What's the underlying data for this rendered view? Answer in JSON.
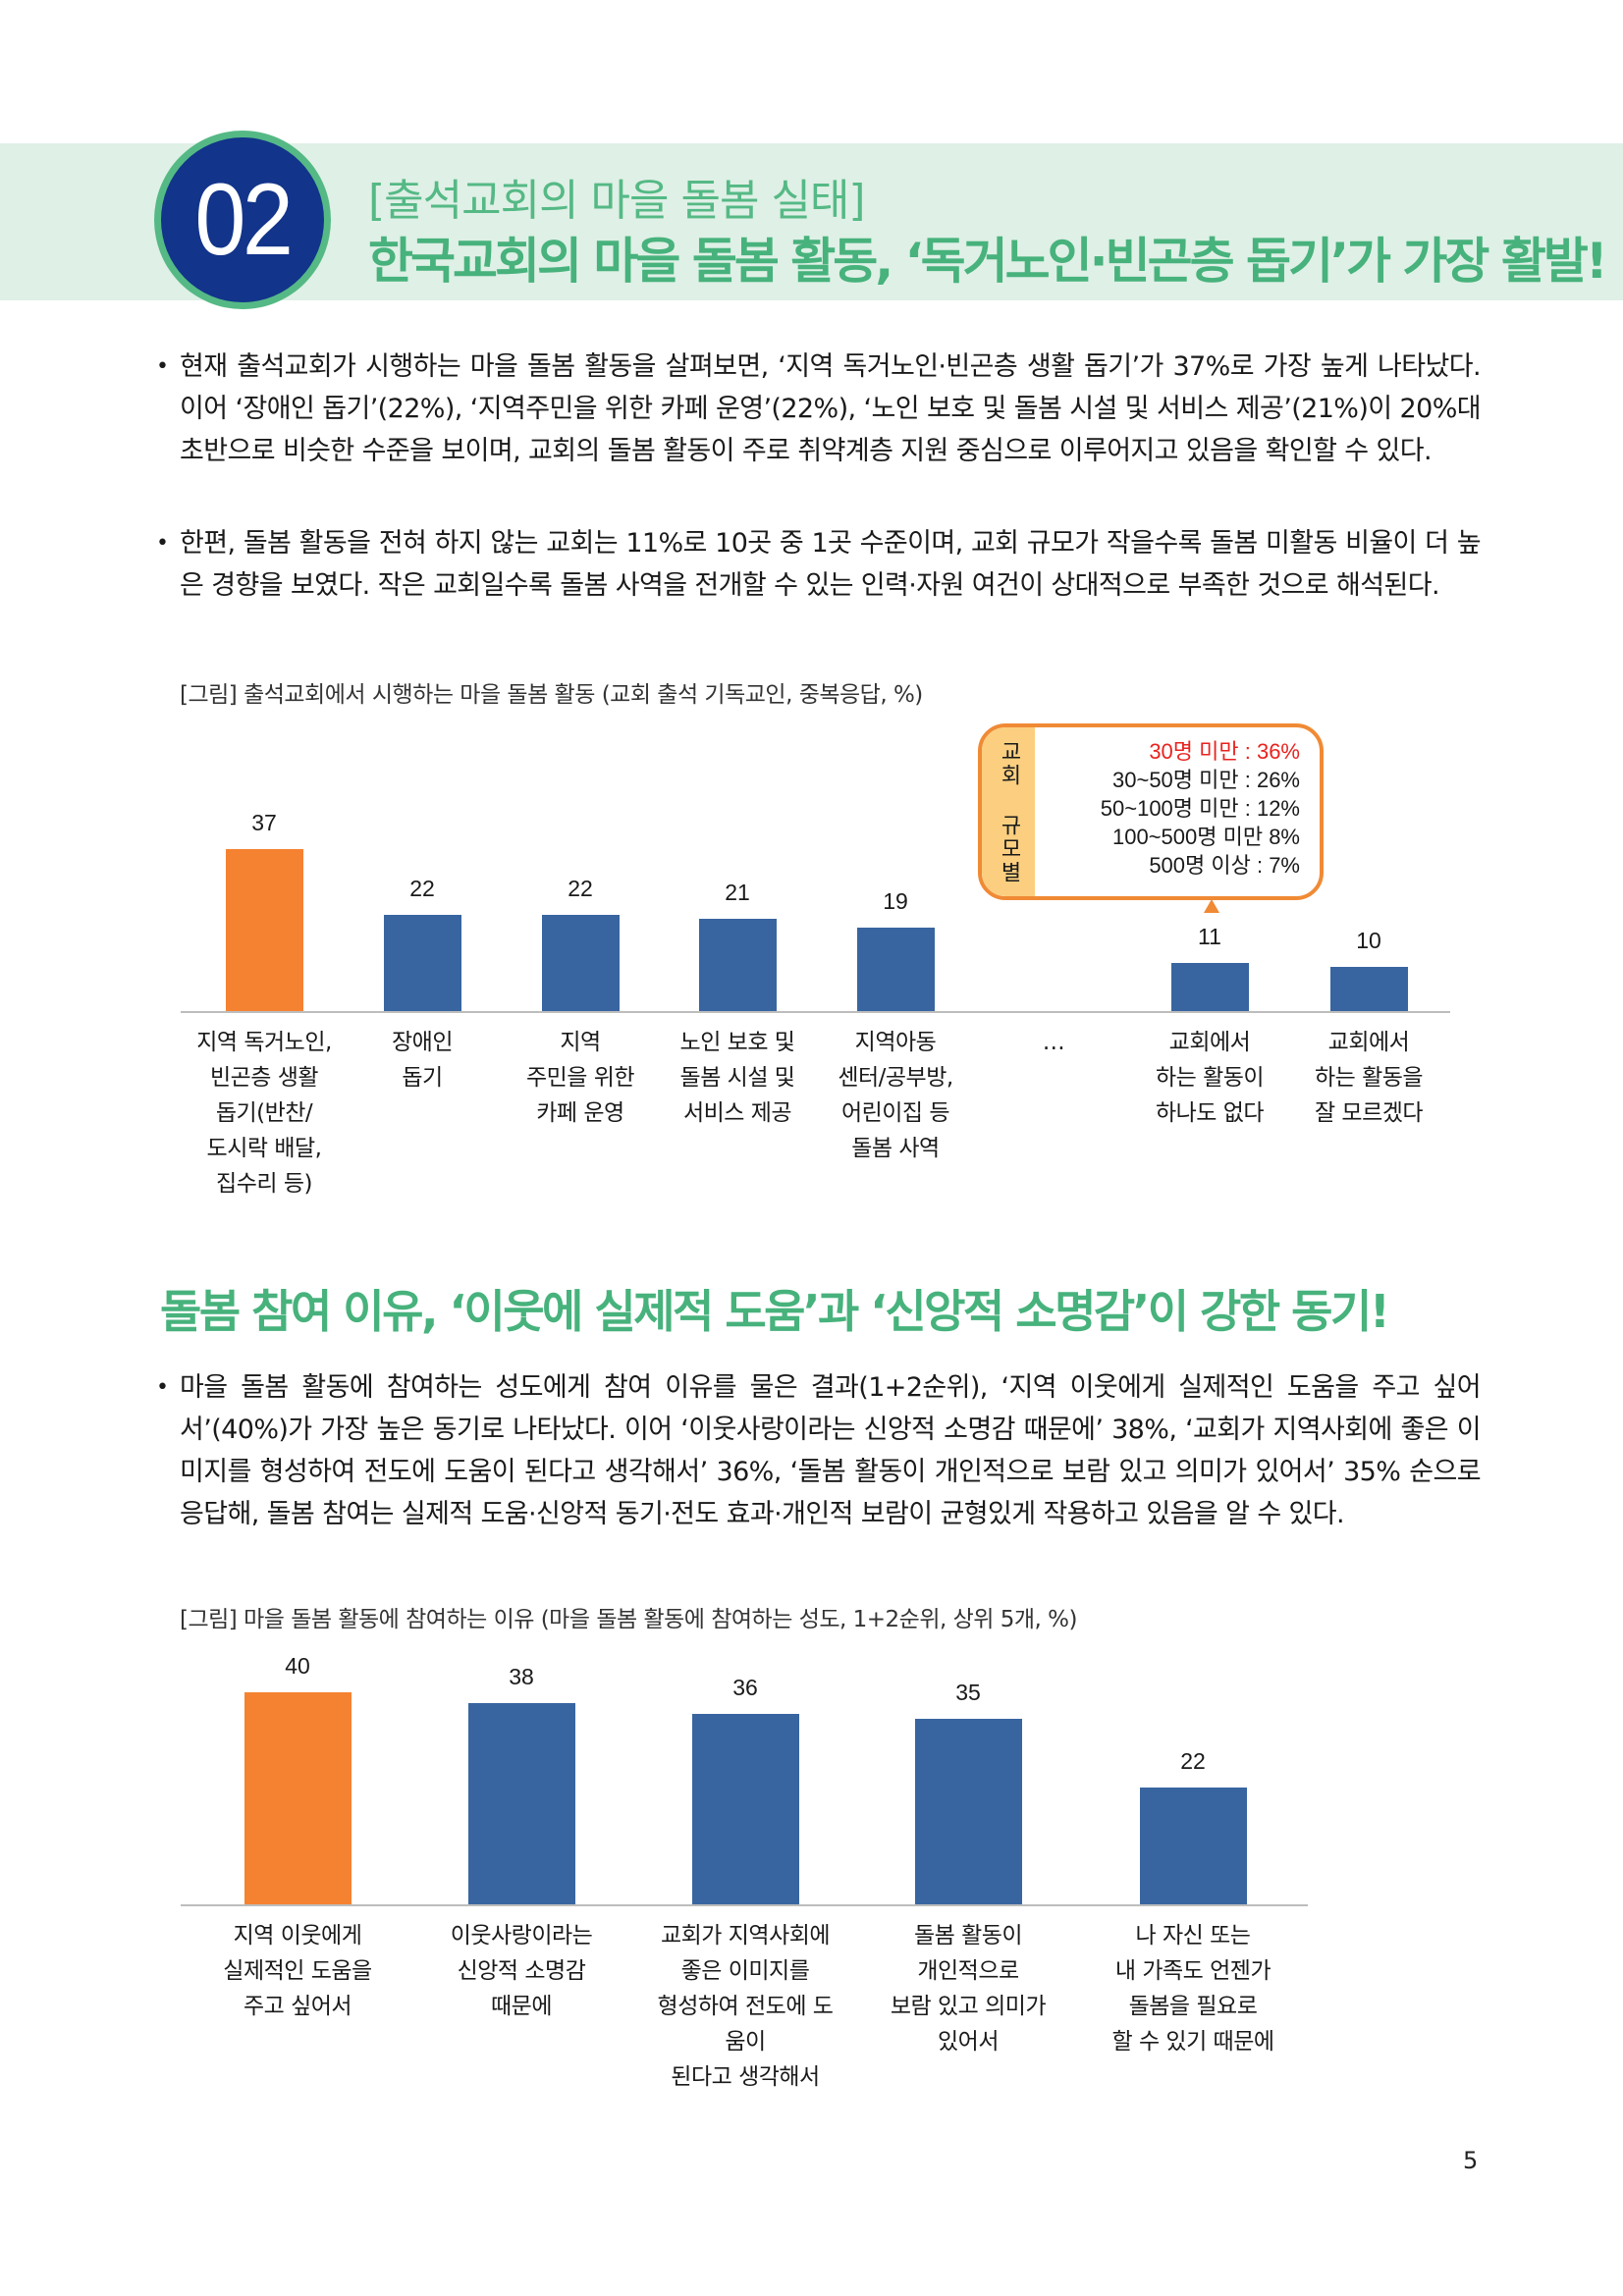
{
  "header": {
    "number": "02",
    "subtitle": "[출석교회의 마을 돌봄 실태]",
    "title": "한국교회의 마을 돌봄 활동, ‘독거노인·빈곤층 돕기’가 가장 활발!"
  },
  "section1": {
    "paragraphs": [
      "현재 출석교회가 시행하는 마을 돌봄 활동을 살펴보면, ‘지역 독거노인·빈곤층 생활 돕기’가 37%로 가장 높게 나타났다. 이어 ‘장애인 돕기’(22%), ‘지역주민을 위한 카페 운영’(22%), ‘노인 보호 및 돌봄 시설 및 서비스 제공’(21%)이 20%대 초반으로 비슷한 수준을 보이며, 교회의 돌봄 활동이 주로 취약계층 지원 중심으로 이루어지고 있음을 확인할 수 있다.",
      "한편, 돌봄 활동을 전혀 하지 않는 교회는 11%로 10곳 중 1곳 수준이며, 교회 규모가 작을수록 돌봄 미활동 비율이 더 높은 경향을 보였다. 작은 교회일수록 돌봄 사역을 전개할 수 있는 인력·자원 여건이 상대적으로 부족한 것으로 해석된다."
    ],
    "figure_caption": "[그림] 출석교회에서 시행하는 마을 돌봄 활동 (교회 출석 기독교인, 중복응답, %)",
    "callout": {
      "tag": "교회 규모별",
      "lines": [
        {
          "text": "30명 미만 : 36%",
          "highlight": true
        },
        {
          "text": "30~50명 미만 : 26%",
          "highlight": false
        },
        {
          "text": "50~100명 미만 : 12%",
          "highlight": false
        },
        {
          "text": "100~500명 미만 8%",
          "highlight": false
        },
        {
          "text": "500명 이상 : 7%",
          "highlight": false
        }
      ],
      "highlight_color": "#e8231f",
      "border_color": "#f08a35"
    }
  },
  "section2": {
    "heading": "돌봄 참여 이유, ‘이웃에 실제적 도움’과 ‘신앙적 소명감’이 강한 동기!",
    "paragraphs": [
      "마을 돌봄 활동에 참여하는 성도에게 참여 이유를 물은 결과(1+2순위), ‘지역 이웃에게 실제적인 도움을 주고 싶어서’(40%)가 가장 높은 동기로 나타났다. 이어 ‘이웃사랑이라는 신앙적 소명감 때문에’ 38%, ‘교회가 지역사회에 좋은 이미지를 형성하여 전도에 도움이 된다고 생각해서’ 36%, ‘돌봄 활동이 개인적으로 보람 있고 의미가 있어서’ 35% 순으로 응답해, 돌봄 참여는 실제적 도움·신앙적 동기·전도 효과·개인적 보람이 균형있게 작용하고 있음을 알 수 있다."
    ],
    "figure_caption": "[그림] 마을 돌봄 활동에 참여하는 이유 (마을 돌봄 활동에 참여하는 성도, 1+2순위, 상위 5개, %)"
  },
  "colors": {
    "accent_green": "#47b27c",
    "band": "#dff0e6",
    "navy": "#12348a",
    "bar_highlight": "#f58231",
    "bar_default": "#3865a0"
  },
  "page_number": "5",
  "chart_data": [
    {
      "type": "bar",
      "title": "[그림] 출석교회에서 시행하는 마을 돌봄 활동 (교회 출석 기독교인, 중복응답, %)",
      "xlabel": "",
      "ylabel": "%",
      "categories": [
        "지역 독거노인,\n빈곤층 생활\n돕기(반찬/\n도시락 배달,\n집수리 등)",
        "장애인\n돕기",
        "지역\n주민을 위한\n카페 운영",
        "노인 보호 및\n돌봄 시설 및\n서비스 제공",
        "지역아동\n센터/공부방,\n어린이집 등\n돌봄 사역",
        "…",
        "교회에서\n하는 활동이\n하나도 없다",
        "교회에서\n하는 활동을\n잘 모르겠다"
      ],
      "values": [
        37,
        22,
        22,
        21,
        19,
        null,
        11,
        10
      ],
      "highlight_index": 0,
      "grid": false,
      "legend": null,
      "annotation": "교회 규모별 (활동 없음): 30명 미만 36%, 30~50명 미만 26%, 50~100명 미만 12%, 100~500명 미만 8%, 500명 이상 7%"
    },
    {
      "type": "bar",
      "title": "[그림] 마을 돌봄 활동에 참여하는 이유 (마을 돌봄 활동에 참여하는 성도, 1+2순위, 상위 5개, %)",
      "xlabel": "",
      "ylabel": "%",
      "categories": [
        "지역 이웃에게\n실제적인 도움을\n주고 싶어서",
        "이웃사랑이라는\n신앙적 소명감\n때문에",
        "교회가 지역사회에\n좋은 이미지를\n형성하여 전도에 도움이\n된다고 생각해서",
        "돌봄 활동이\n개인적으로\n보람 있고 의미가\n있어서",
        "나 자신 또는\n내 가족도 언젠가\n돌봄을 필요로\n할 수 있기 때문에"
      ],
      "values": [
        40,
        38,
        36,
        35,
        22
      ],
      "highlight_index": 0,
      "grid": false,
      "legend": null
    }
  ]
}
